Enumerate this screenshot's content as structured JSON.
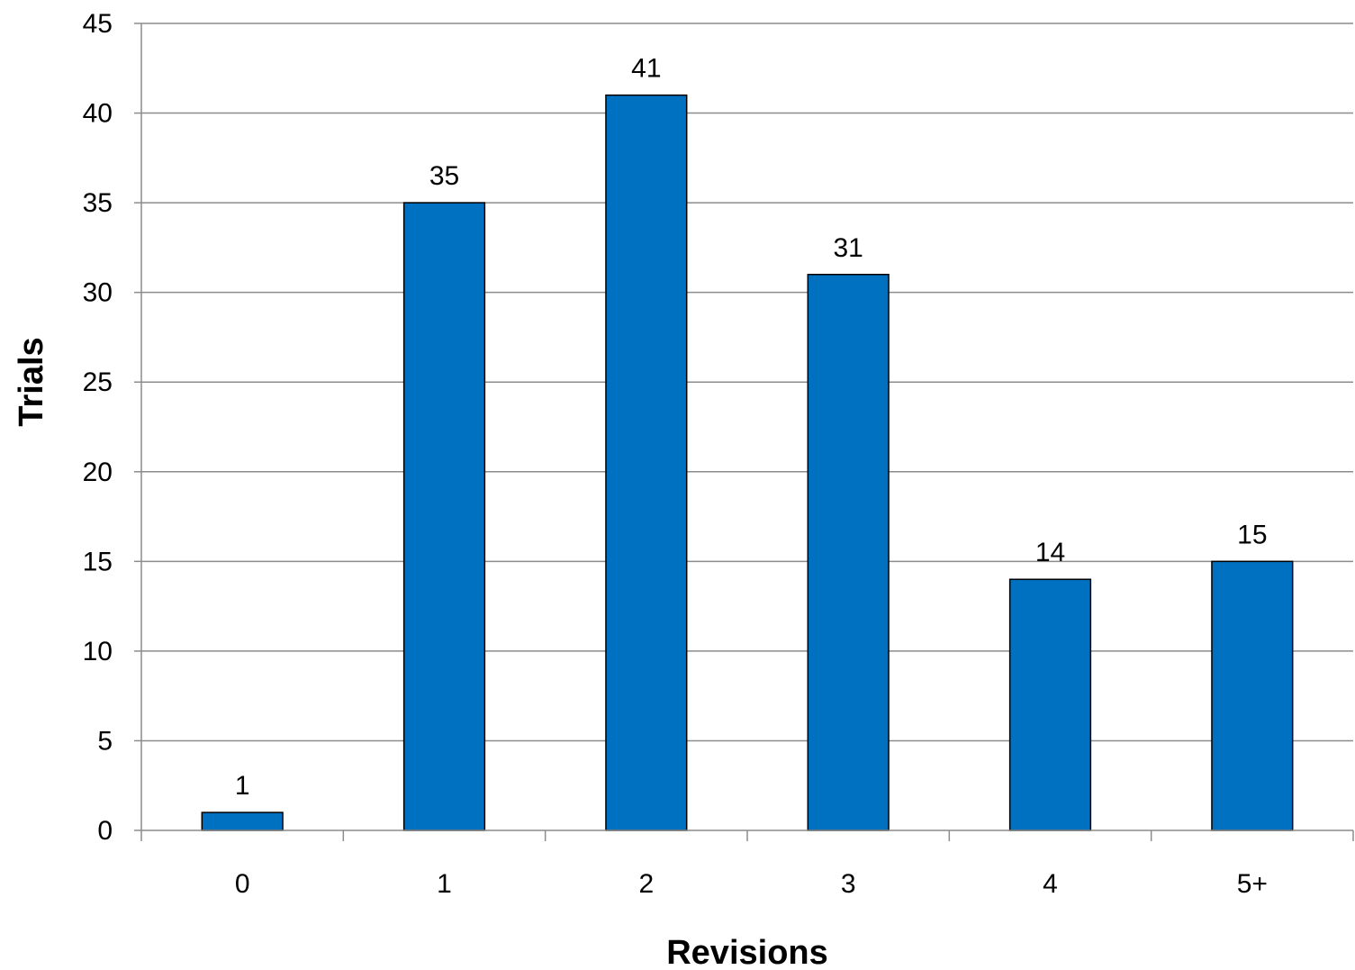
{
  "chart_data": {
    "type": "bar",
    "categories": [
      "0",
      "1",
      "2",
      "3",
      "4",
      "5+"
    ],
    "values": [
      1,
      35,
      41,
      31,
      14,
      15
    ],
    "data_labels": [
      "1",
      "35",
      "41",
      "31",
      "14",
      "15"
    ],
    "title": "",
    "xlabel": "Revisions",
    "ylabel": "Trials",
    "ylim": [
      0,
      45
    ],
    "yticks": [
      0,
      5,
      10,
      15,
      20,
      25,
      30,
      35,
      40,
      45
    ],
    "ytick_labels": [
      "0",
      "5",
      "10",
      "15",
      "20",
      "25",
      "30",
      "35",
      "40",
      "45"
    ],
    "grid": true,
    "legend": "none",
    "bar_color": "#0070c0",
    "bar_edge_color": "#000000"
  }
}
